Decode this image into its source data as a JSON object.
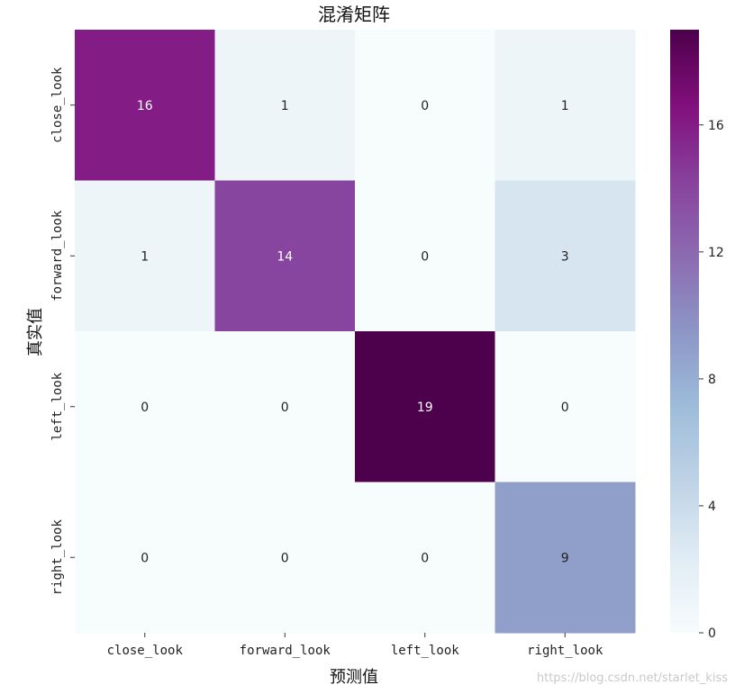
{
  "chart_data": {
    "type": "heatmap",
    "title": "混淆矩阵",
    "xlabel": "预测值",
    "ylabel": "真实值",
    "x_categories": [
      "close_look",
      "forward_look",
      "left_look",
      "right_look"
    ],
    "y_categories": [
      "close_look",
      "forward_look",
      "left_look",
      "right_look"
    ],
    "values": [
      [
        16,
        1,
        0,
        1
      ],
      [
        1,
        14,
        0,
        3
      ],
      [
        0,
        0,
        19,
        0
      ],
      [
        0,
        0,
        0,
        9
      ]
    ],
    "colorbar": {
      "range": [
        0,
        19
      ],
      "ticks": [
        0,
        4,
        8,
        12,
        16
      ],
      "colormap": "BuPu",
      "colors": [
        "#f7fcfd",
        "#e0ecf4",
        "#bfd3e6",
        "#9ebcda",
        "#8c96c6",
        "#8c6bb1",
        "#88419d",
        "#810f7c",
        "#4d004b"
      ]
    }
  },
  "watermark": "https://blog.csdn.net/starlet_kiss"
}
